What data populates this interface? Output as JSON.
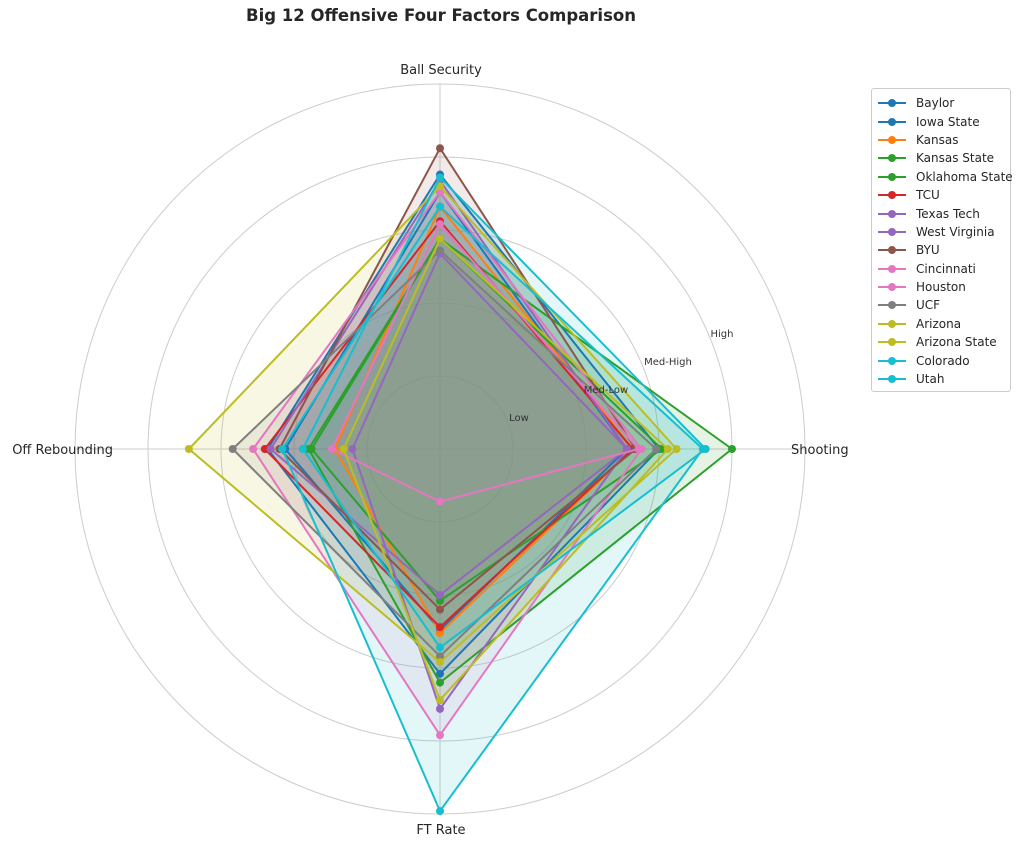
{
  "chart_data": {
    "type": "radar",
    "title": "Big 12 Offensive Four Factors Comparison",
    "axes": [
      "Shooting",
      "Ball Security",
      "Off Rebounding",
      "FT Rate"
    ],
    "scale_labels": [
      "Low",
      "Med-Low",
      "Med-High",
      "High"
    ],
    "r_max": 1.0,
    "grid": true,
    "legend_position": "upper right outside",
    "series": [
      {
        "name": "Baylor",
        "color": "#1f77b4",
        "values": [
          0.64,
          0.88,
          0.53,
          0.62
        ]
      },
      {
        "name": "Iowa State",
        "color": "#1f77b4",
        "values": [
          0.75,
          0.94,
          0.59,
          0.77
        ]
      },
      {
        "name": "Kansas",
        "color": "#ff7f0e",
        "values": [
          0.66,
          0.83,
          0.36,
          0.63
        ]
      },
      {
        "name": "Kansas State",
        "color": "#2ca02c",
        "values": [
          1.0,
          0.72,
          0.45,
          0.8
        ]
      },
      {
        "name": "Oklahoma State",
        "color": "#2ca02c",
        "values": [
          0.76,
          0.72,
          0.44,
          0.52
        ]
      },
      {
        "name": "TCU",
        "color": "#d62728",
        "values": [
          0.66,
          0.78,
          0.6,
          0.61
        ]
      },
      {
        "name": "Texas Tech",
        "color": "#9467bd",
        "values": [
          0.64,
          0.92,
          0.58,
          0.5
        ]
      },
      {
        "name": "West Virginia",
        "color": "#9467bd",
        "values": [
          0.64,
          0.67,
          0.3,
          0.89
        ]
      },
      {
        "name": "BYU",
        "color": "#8c564b",
        "values": [
          0.67,
          1.03,
          0.55,
          0.55
        ]
      },
      {
        "name": "Cincinnati",
        "color": "#e377c2",
        "values": [
          0.69,
          0.88,
          0.64,
          0.98
        ]
      },
      {
        "name": "Houston",
        "color": "#e377c2",
        "values": [
          0.68,
          0.77,
          0.37,
          0.18
        ]
      },
      {
        "name": "UCF",
        "color": "#7f7f7f",
        "values": [
          0.74,
          0.68,
          0.71,
          0.71
        ]
      },
      {
        "name": "Arizona",
        "color": "#bcbd22",
        "values": [
          0.81,
          0.9,
          0.86,
          0.73
        ]
      },
      {
        "name": "Arizona State",
        "color": "#bcbd22",
        "values": [
          0.78,
          0.72,
          0.33,
          0.86
        ]
      },
      {
        "name": "Colorado",
        "color": "#17becf",
        "values": [
          0.91,
          0.93,
          0.47,
          0.68
        ]
      },
      {
        "name": "Utah",
        "color": "#17becf",
        "values": [
          0.9,
          0.83,
          0.54,
          1.24
        ]
      }
    ]
  }
}
